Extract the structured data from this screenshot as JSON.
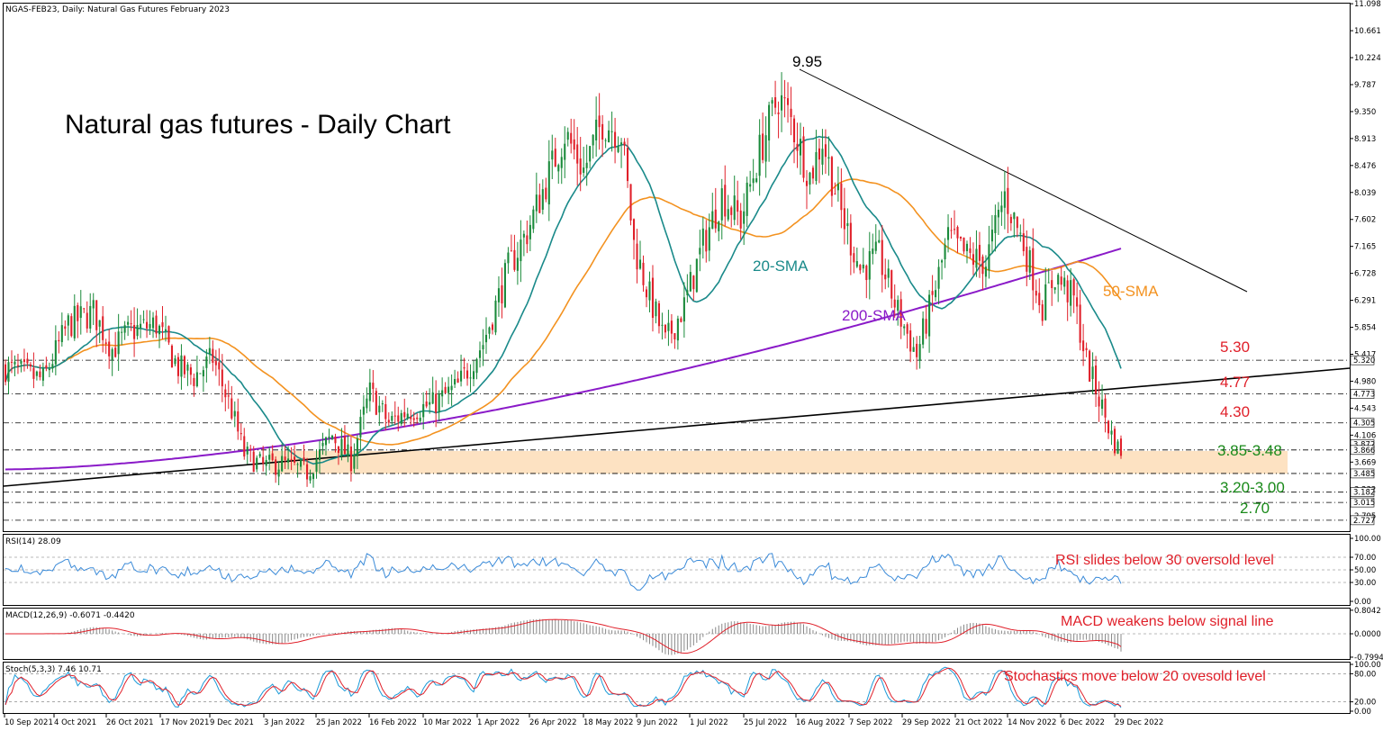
{
  "header": {
    "symbol_line": "NGAS-FEB23, Daily:  Natural Gas Futures February 2023",
    "main_title": "Natural gas futures - Daily Chart"
  },
  "colors": {
    "bull": "#1a8a3a",
    "bear": "#e0202a",
    "sma20": "#1a8a8a",
    "sma50": "#f39220",
    "sma200": "#8a1ac8",
    "annot_red": "#e0202a",
    "annot_green": "#1a8a1a",
    "zone": "#fde2c2",
    "rsi_line": "#3a8ad8",
    "macd_signal": "#e0202a",
    "stoch_main": "#1a9ad8",
    "stoch_signal": "#e0202a"
  },
  "chart_data": [
    {
      "type": "candlestick",
      "panel": "price",
      "y_axis_ticks": [
        "11.098",
        "10.661",
        "10.224",
        "9.787",
        "9.350",
        "8.913",
        "8.476",
        "8.039",
        "7.602",
        "7.165",
        "6.728",
        "6.291",
        "5.854",
        "5.417",
        "4.980",
        "4.543",
        "4.106",
        "3.669",
        "3.232",
        "2.795"
      ],
      "ylim": [
        2.55,
        11.1
      ],
      "price_tags": [
        "5.320",
        "4.773",
        "4.305",
        "3.872",
        "3.866",
        "3.485",
        "3.182",
        "3.015",
        "2.727"
      ],
      "x_axis_labels": [
        "10 Sep 2021",
        "4 Oct 2021",
        "26 Oct 2021",
        "17 Nov 2021",
        "9 Dec 2021",
        "3 Jan 2022",
        "25 Jan 2022",
        "16 Feb 2022",
        "10 Mar 2022",
        "1 Apr 2022",
        "26 Apr 2022",
        "18 May 2022",
        "9 Jun 2022",
        "1 Jul 2022",
        "25 Jul 2022",
        "16 Aug 2022",
        "7 Sep 2022",
        "29 Sep 2022",
        "21 Oct 2022",
        "14 Nov 2022",
        "6 Dec 2022",
        "29 Dec 2022"
      ],
      "ohlc_keypoints": [
        [
          0,
          5.2
        ],
        [
          12,
          5.0
        ],
        [
          20,
          5.9
        ],
        [
          28,
          6.1
        ],
        [
          34,
          5.5
        ],
        [
          40,
          5.8
        ],
        [
          48,
          5.9
        ],
        [
          55,
          5.2
        ],
        [
          60,
          5.05
        ],
        [
          66,
          5.35
        ],
        [
          72,
          4.5
        ],
        [
          76,
          3.8
        ],
        [
          82,
          3.6
        ],
        [
          88,
          3.65
        ],
        [
          96,
          3.5
        ],
        [
          104,
          4.1
        ],
        [
          110,
          3.7
        ],
        [
          116,
          4.8
        ],
        [
          122,
          4.3
        ],
        [
          128,
          4.5
        ],
        [
          136,
          4.6
        ],
        [
          144,
          4.9
        ],
        [
          152,
          5.6
        ],
        [
          160,
          6.8
        ],
        [
          166,
          7.4
        ],
        [
          172,
          8.2
        ],
        [
          178,
          9.0
        ],
        [
          184,
          8.4
        ],
        [
          190,
          9.2
        ],
        [
          196,
          9.0
        ],
        [
          200,
          7.2
        ],
        [
          204,
          6.5
        ],
        [
          210,
          5.6
        ],
        [
          216,
          6.2
        ],
        [
          222,
          7.2
        ],
        [
          228,
          8.0
        ],
        [
          234,
          7.6
        ],
        [
          240,
          8.7
        ],
        [
          246,
          9.6
        ],
        [
          250,
          9.2
        ],
        [
          256,
          8.3
        ],
        [
          260,
          8.9
        ],
        [
          266,
          7.7
        ],
        [
          272,
          6.8
        ],
        [
          278,
          7.0
        ],
        [
          284,
          6.1
        ],
        [
          290,
          5.4
        ],
        [
          296,
          6.5
        ],
        [
          300,
          7.3
        ],
        [
          306,
          7.0
        ],
        [
          312,
          6.9
        ],
        [
          318,
          8.0
        ],
        [
          324,
          7.2
        ],
        [
          330,
          6.2
        ],
        [
          334,
          6.7
        ],
        [
          340,
          6.3
        ],
        [
          344,
          5.3
        ],
        [
          348,
          4.7
        ],
        [
          352,
          4.1
        ],
        [
          355,
          3.77
        ]
      ],
      "annotations": {
        "peak_label": "9.95",
        "sma20_label": "20-SMA",
        "sma50_label": "50-SMA",
        "sma200_label": "200-SMA",
        "level_530": "5.30",
        "level_477": "4.77",
        "level_430": "4.30",
        "zone_label": "3.85-3.48",
        "level_320_300": "3.20-3.00",
        "level_270": "2.70"
      }
    },
    {
      "type": "line",
      "panel": "rsi",
      "header": "RSI(14) 28.09",
      "y_axis_ticks": [
        "100.00",
        "70.00",
        "50.00",
        "30.00",
        "0.00"
      ],
      "ylim": [
        0,
        100
      ],
      "annotation": "RSI slides below 30 oversold level"
    },
    {
      "type": "bar",
      "panel": "macd",
      "header": "MACD(12,26,9) -0.6071 -0.4420",
      "y_axis_ticks": [
        "0.8042",
        "0.0000",
        "-0.7994"
      ],
      "ylim": [
        -0.8,
        0.8
      ],
      "annotation": "MACD weakens below signal line"
    },
    {
      "type": "line",
      "panel": "stochastic",
      "header": "Stoch(5,3,3) 7.46 10.71",
      "y_axis_ticks": [
        "100.00",
        "80.00",
        "20.00",
        "0.00"
      ],
      "ylim": [
        0,
        100
      ],
      "annotation": "Stochastics move below 20 ovesold level"
    }
  ]
}
